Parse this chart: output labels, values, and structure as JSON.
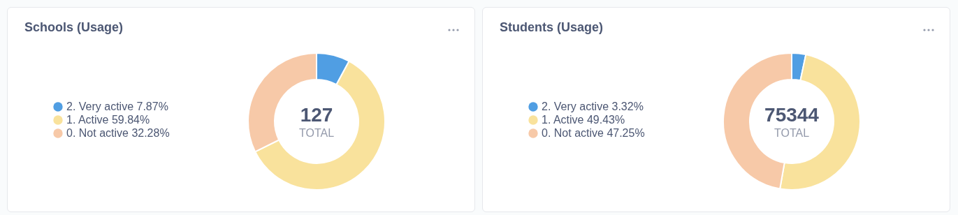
{
  "chart_data": [
    {
      "type": "donut",
      "title": "Schools (Usage)",
      "categories": [
        "2. Very active",
        "1. Active",
        "0. Not active"
      ],
      "values": [
        7.87,
        59.84,
        32.28
      ],
      "colors": [
        "#509ee3",
        "#f9e29c",
        "#f7c9a8"
      ],
      "value_labels": [
        "7.87%",
        "59.84%",
        "32.28%"
      ],
      "legend": "left",
      "annotations": [
        "127",
        "TOTAL"
      ]
    },
    {
      "type": "donut",
      "title": "Students (Usage)",
      "categories": [
        "2. Very active",
        "1. Active",
        "0. Not active"
      ],
      "values": [
        3.32,
        49.43,
        47.25
      ],
      "colors": [
        "#509ee3",
        "#f9e29c",
        "#f7c9a8"
      ],
      "value_labels": [
        "3.32%",
        "49.43%",
        "47.25%"
      ],
      "legend": "left",
      "annotations": [
        "75344",
        "TOTAL"
      ]
    }
  ]
}
